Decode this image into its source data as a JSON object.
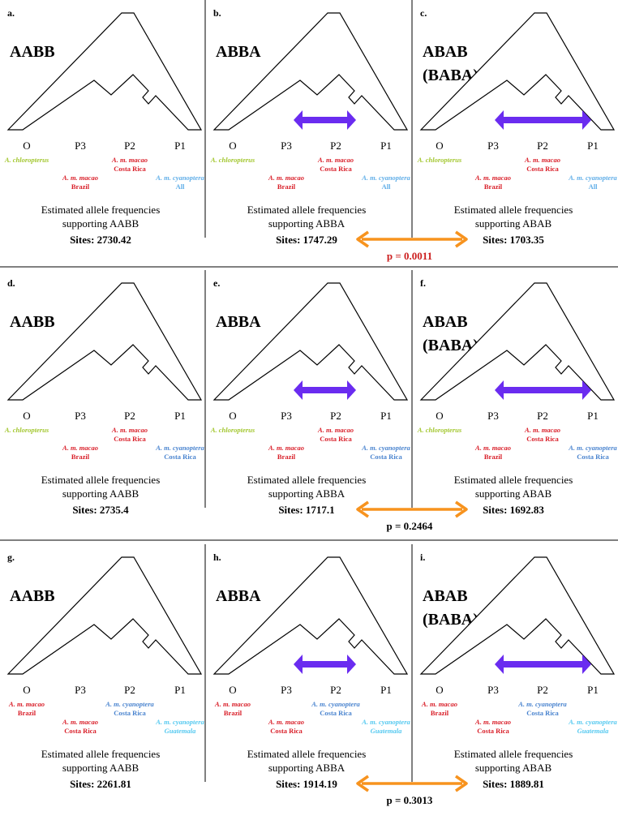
{
  "colors": {
    "green": "#a3c730",
    "red": "#d9202a",
    "blue": "#4a84cf",
    "lightblue": "#60aee8",
    "cyan": "#55c9f0",
    "purple": "#6a2cf0",
    "orange": "#f7931e",
    "pvalue_red": "#cc1f1f",
    "line": "#000000"
  },
  "rows": [
    {
      "p_value": "p = 0.0011",
      "p_value_color": "pvalue_red",
      "panels": [
        {
          "letter": "a.",
          "pattern": "AABB",
          "alt_pattern": "",
          "arrow": "none",
          "estimate_line1": "Estimated allele frequencies",
          "estimate_line2": "supporting AABB",
          "sites": "Sites: 2730.42"
        },
        {
          "letter": "b.",
          "pattern": "ABBA",
          "alt_pattern": "",
          "arrow": "short",
          "estimate_line1": "Estimated allele frequencies",
          "estimate_line2": "supporting ABBA",
          "sites": "Sites: 1747.29"
        },
        {
          "letter": "c.",
          "pattern": "ABAB",
          "alt_pattern": "(BABA)",
          "arrow": "long",
          "estimate_line1": "Estimated allele frequencies",
          "estimate_line2": "supporting ABAB",
          "sites": "Sites: 1703.35"
        }
      ],
      "taxa": {
        "O": {
          "label": "O",
          "lines": [
            "A. chloropterus"
          ],
          "color": "green",
          "italic": [
            true
          ]
        },
        "P3": {
          "label": "P3",
          "lines": [
            "A. m. macao",
            "Brazil"
          ],
          "color": "red",
          "italic": [
            true,
            false
          ]
        },
        "P2": {
          "label": "P2",
          "lines": [
            "A. m. macao",
            "Costa Rica"
          ],
          "color": "red",
          "italic": [
            true,
            false
          ]
        },
        "P1": {
          "label": "P1",
          "lines": [
            "A. m. cyanoptera",
            "All"
          ],
          "color": "lightblue",
          "italic": [
            true,
            false
          ]
        }
      }
    },
    {
      "p_value": "p = 0.2464",
      "p_value_color": "line",
      "panels": [
        {
          "letter": "d.",
          "pattern": "AABB",
          "alt_pattern": "",
          "arrow": "none",
          "estimate_line1": "Estimated allele frequencies",
          "estimate_line2": "supporting AABB",
          "sites": "Sites: 2735.4"
        },
        {
          "letter": "e.",
          "pattern": "ABBA",
          "alt_pattern": "",
          "arrow": "short",
          "estimate_line1": "Estimated allele frequencies",
          "estimate_line2": "supporting ABBA",
          "sites": "Sites: 1717.1"
        },
        {
          "letter": "f.",
          "pattern": "ABAB",
          "alt_pattern": "(BABA)",
          "arrow": "long",
          "estimate_line1": "Estimated allele frequencies",
          "estimate_line2": "supporting ABAB",
          "sites": "Sites: 1692.83"
        }
      ],
      "taxa": {
        "O": {
          "label": "O",
          "lines": [
            "A. chloropterus"
          ],
          "color": "green",
          "italic": [
            true
          ]
        },
        "P3": {
          "label": "P3",
          "lines": [
            "A. m. macao",
            "Brazil"
          ],
          "color": "red",
          "italic": [
            true,
            false
          ]
        },
        "P2": {
          "label": "P2",
          "lines": [
            "A. m. macao",
            "Costa Rica"
          ],
          "color": "red",
          "italic": [
            true,
            false
          ]
        },
        "P1": {
          "label": "P1",
          "lines": [
            "A. m. cyanoptera",
            "Costa Rica"
          ],
          "color": "blue",
          "italic": [
            true,
            false
          ]
        }
      }
    },
    {
      "p_value": "p = 0.3013",
      "p_value_color": "line",
      "panels": [
        {
          "letter": "g.",
          "pattern": "AABB",
          "alt_pattern": "",
          "arrow": "none",
          "estimate_line1": "Estimated allele frequencies",
          "estimate_line2": "supporting AABB",
          "sites": "Sites: 2261.81"
        },
        {
          "letter": "h.",
          "pattern": "ABBA",
          "alt_pattern": "",
          "arrow": "short",
          "estimate_line1": "Estimated allele frequencies",
          "estimate_line2": "supporting ABBA",
          "sites": "Sites: 1914.19"
        },
        {
          "letter": "i.",
          "pattern": "ABAB",
          "alt_pattern": "(BABA)",
          "arrow": "long",
          "estimate_line1": "Estimated allele frequencies",
          "estimate_line2": "supporting ABAB",
          "sites": "Sites: 1889.81"
        }
      ],
      "taxa": {
        "O": {
          "label": "O",
          "lines": [
            "A. m. macao",
            "Brazil"
          ],
          "color": "red",
          "italic": [
            true,
            false
          ]
        },
        "P3": {
          "label": "P3",
          "lines": [
            "A. m. macao",
            "Costa Rica"
          ],
          "color": "red",
          "italic": [
            true,
            false
          ]
        },
        "P2": {
          "label": "P2",
          "lines": [
            "A. m. cyanoptera",
            "Costa Rica"
          ],
          "color": "blue",
          "italic": [
            true,
            false
          ]
        },
        "P1": {
          "label": "P1",
          "lines": [
            "A. m. cyanoptera",
            "Guatemala"
          ],
          "color": "cyan",
          "italic": [
            true,
            true
          ]
        }
      }
    }
  ]
}
